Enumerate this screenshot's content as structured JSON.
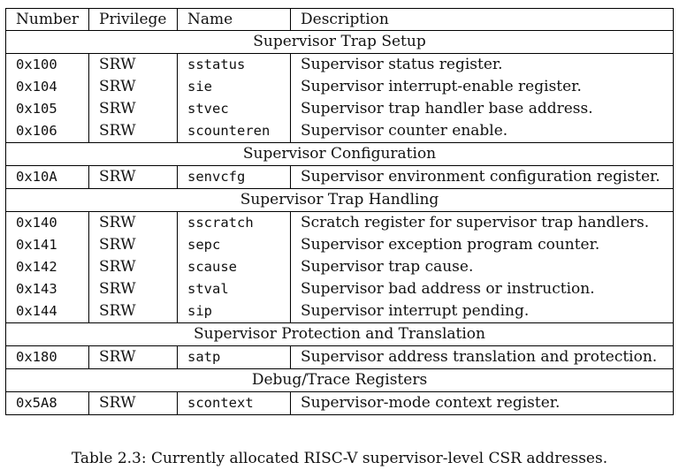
{
  "table": {
    "headers": {
      "number": "Number",
      "privilege": "Privilege",
      "name": "Name",
      "description": "Description"
    },
    "sections": [
      {
        "title": "Supervisor Trap Setup",
        "rows": [
          {
            "number": "0x100",
            "privilege": "SRW",
            "name": "sstatus",
            "description": "Supervisor status register."
          },
          {
            "number": "0x104",
            "privilege": "SRW",
            "name": "sie",
            "description": "Supervisor interrupt-enable register."
          },
          {
            "number": "0x105",
            "privilege": "SRW",
            "name": "stvec",
            "description": "Supervisor trap handler base address."
          },
          {
            "number": "0x106",
            "privilege": "SRW",
            "name": "scounteren",
            "description": "Supervisor counter enable."
          }
        ]
      },
      {
        "title": "Supervisor Configuration",
        "rows": [
          {
            "number": "0x10A",
            "privilege": "SRW",
            "name": "senvcfg",
            "description": "Supervisor environment configuration register."
          }
        ]
      },
      {
        "title": "Supervisor Trap Handling",
        "rows": [
          {
            "number": "0x140",
            "privilege": "SRW",
            "name": "sscratch",
            "description": "Scratch register for supervisor trap handlers."
          },
          {
            "number": "0x141",
            "privilege": "SRW",
            "name": "sepc",
            "description": "Supervisor exception program counter."
          },
          {
            "number": "0x142",
            "privilege": "SRW",
            "name": "scause",
            "description": "Supervisor trap cause."
          },
          {
            "number": "0x143",
            "privilege": "SRW",
            "name": "stval",
            "description": "Supervisor bad address or instruction."
          },
          {
            "number": "0x144",
            "privilege": "SRW",
            "name": "sip",
            "description": "Supervisor interrupt pending."
          }
        ]
      },
      {
        "title": "Supervisor Protection and Translation",
        "rows": [
          {
            "number": "0x180",
            "privilege": "SRW",
            "name": "satp",
            "description": "Supervisor address translation and protection."
          }
        ]
      },
      {
        "title": "Debug/Trace Registers",
        "rows": [
          {
            "number": "0x5A8",
            "privilege": "SRW",
            "name": "scontext",
            "description": "Supervisor-mode context register."
          }
        ]
      }
    ]
  },
  "caption": "Table 2.3: Currently allocated RISC-V supervisor-level CSR addresses."
}
